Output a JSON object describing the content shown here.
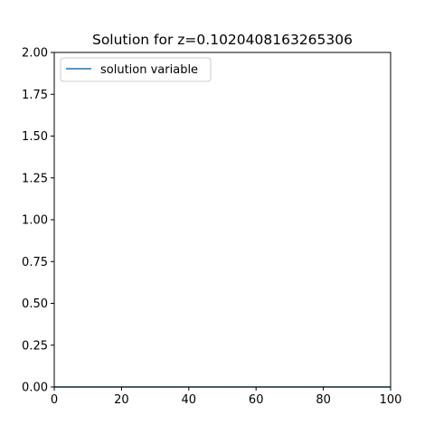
{
  "chart_data": {
    "type": "line",
    "title": "Solution for z=0.1020408163265306",
    "xlabel": "",
    "ylabel": "",
    "xlim": [
      0,
      100
    ],
    "ylim": [
      0,
      2
    ],
    "x_ticks": [
      "0",
      "20",
      "40",
      "60",
      "80",
      "100"
    ],
    "y_ticks": [
      "0.00",
      "0.25",
      "0.50",
      "0.75",
      "1.00",
      "1.25",
      "1.50",
      "1.75",
      "2.00"
    ],
    "grid": false,
    "legend_position": "upper-left",
    "series": [
      {
        "name": "solution variable",
        "color": "#1f77b4",
        "x": [
          0,
          100
        ],
        "y": [
          0,
          0
        ]
      }
    ]
  }
}
